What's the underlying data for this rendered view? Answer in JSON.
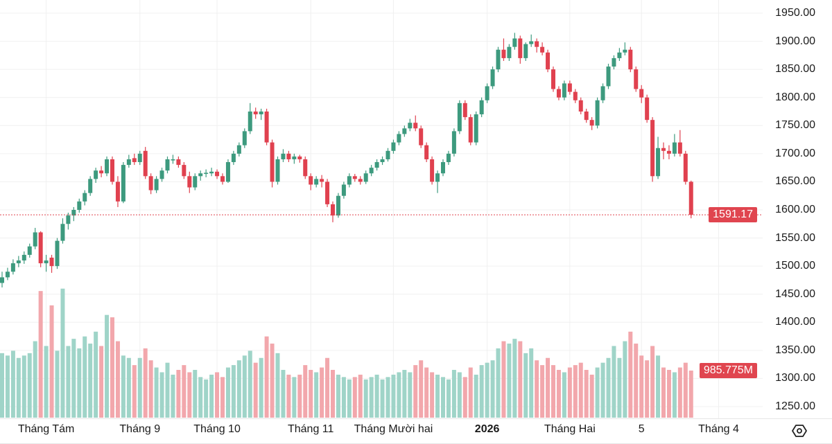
{
  "chart_data": {
    "type": "candlestick",
    "y_axis": {
      "ticks": [
        "1950.00",
        "1900.00",
        "1850.00",
        "1800.00",
        "1750.00",
        "1700.00",
        "1650.00",
        "1600.00",
        "1550.00",
        "1500.00",
        "1450.00",
        "1400.00",
        "1350.00",
        "1300.00",
        "1250.00"
      ],
      "range": [
        1230,
        1960
      ]
    },
    "x_axis": {
      "ticks": [
        {
          "label": "Tháng Tám",
          "index": 8,
          "bold": false
        },
        {
          "label": "Tháng 9",
          "index": 25,
          "bold": false
        },
        {
          "label": "Tháng 10",
          "index": 39,
          "bold": false
        },
        {
          "label": "Tháng 11",
          "index": 56,
          "bold": false
        },
        {
          "label": "Tháng Mười hai",
          "index": 71,
          "bold": false
        },
        {
          "label": "2026",
          "index": 88,
          "bold": true
        },
        {
          "label": "Tháng Hai",
          "index": 103,
          "bold": false
        },
        {
          "label": "5",
          "index": 116,
          "bold": false
        },
        {
          "label": "Tháng 4",
          "index": 130,
          "bold": false
        }
      ]
    },
    "last_price": "1591.17",
    "last_volume": "985.775M",
    "grid": true,
    "colors": {
      "up": "#3d9a7e",
      "down": "#e0414f",
      "vol_up": "#9fd4c8",
      "vol_down": "#f2a7ac",
      "price_line": "#e0454f"
    },
    "columns": [
      "open",
      "high",
      "low",
      "close",
      "volume_M"
    ],
    "candles": [
      [
        1470,
        1490,
        1462,
        1480,
        1350
      ],
      [
        1480,
        1497,
        1475,
        1490,
        1300
      ],
      [
        1490,
        1512,
        1485,
        1505,
        1400
      ],
      [
        1505,
        1518,
        1498,
        1510,
        1250
      ],
      [
        1510,
        1526,
        1504,
        1520,
        1300
      ],
      [
        1520,
        1540,
        1515,
        1535,
        1350
      ],
      [
        1535,
        1568,
        1530,
        1560,
        1600
      ],
      [
        1560,
        1562,
        1498,
        1505,
        2650
      ],
      [
        1505,
        1520,
        1490,
        1510,
        1500
      ],
      [
        1515,
        1520,
        1488,
        1500,
        2350
      ],
      [
        1500,
        1550,
        1495,
        1545,
        1400
      ],
      [
        1545,
        1585,
        1540,
        1575,
        2700
      ],
      [
        1575,
        1595,
        1565,
        1590,
        1500
      ],
      [
        1590,
        1605,
        1580,
        1600,
        1650
      ],
      [
        1600,
        1620,
        1595,
        1615,
        1450
      ],
      [
        1615,
        1635,
        1608,
        1630,
        1700
      ],
      [
        1630,
        1660,
        1625,
        1655,
        1550
      ],
      [
        1655,
        1675,
        1648,
        1670,
        1800
      ],
      [
        1670,
        1678,
        1658,
        1665,
        1500
      ],
      [
        1665,
        1695,
        1660,
        1690,
        2150
      ],
      [
        1690,
        1695,
        1645,
        1650,
        2100
      ],
      [
        1650,
        1660,
        1605,
        1615,
        1600
      ],
      [
        1615,
        1685,
        1612,
        1680,
        1300
      ],
      [
        1680,
        1698,
        1675,
        1690,
        1250
      ],
      [
        1692,
        1700,
        1680,
        1685,
        1100
      ],
      [
        1685,
        1705,
        1680,
        1700,
        1250
      ],
      [
        1705,
        1712,
        1655,
        1660,
        1450
      ],
      [
        1660,
        1665,
        1628,
        1635,
        1200
      ],
      [
        1635,
        1660,
        1630,
        1655,
        1050
      ],
      [
        1655,
        1675,
        1650,
        1670,
        950
      ],
      [
        1670,
        1695,
        1665,
        1690,
        1150
      ],
      [
        1688,
        1698,
        1682,
        1690,
        900
      ],
      [
        1690,
        1695,
        1675,
        1680,
        1000
      ],
      [
        1680,
        1685,
        1655,
        1660,
        1100
      ],
      [
        1660,
        1668,
        1630,
        1640,
        950
      ],
      [
        1640,
        1665,
        1635,
        1660,
        1000
      ],
      [
        1660,
        1670,
        1652,
        1665,
        850
      ],
      [
        1664,
        1672,
        1658,
        1666,
        800
      ],
      [
        1665,
        1675,
        1660,
        1668,
        900
      ],
      [
        1668,
        1672,
        1655,
        1660,
        950
      ],
      [
        1660,
        1665,
        1645,
        1650,
        850
      ],
      [
        1650,
        1690,
        1648,
        1685,
        1050
      ],
      [
        1685,
        1705,
        1680,
        1700,
        1100
      ],
      [
        1700,
        1720,
        1695,
        1715,
        1200
      ],
      [
        1715,
        1745,
        1710,
        1740,
        1300
      ],
      [
        1740,
        1790,
        1735,
        1775,
        1400
      ],
      [
        1775,
        1782,
        1762,
        1770,
        1150
      ],
      [
        1770,
        1780,
        1760,
        1775,
        1250
      ],
      [
        1775,
        1780,
        1715,
        1720,
        1700
      ],
      [
        1720,
        1725,
        1640,
        1650,
        1550
      ],
      [
        1650,
        1695,
        1645,
        1690,
        1350
      ],
      [
        1690,
        1708,
        1685,
        1700,
        1000
      ],
      [
        1700,
        1705,
        1685,
        1690,
        900
      ],
      [
        1690,
        1700,
        1682,
        1695,
        850
      ],
      [
        1695,
        1698,
        1684,
        1690,
        900
      ],
      [
        1690,
        1695,
        1655,
        1660,
        1100
      ],
      [
        1660,
        1665,
        1635,
        1645,
        1000
      ],
      [
        1645,
        1660,
        1640,
        1655,
        950
      ],
      [
        1655,
        1662,
        1640,
        1650,
        1050
      ],
      [
        1650,
        1655,
        1605,
        1610,
        1250
      ],
      [
        1610,
        1615,
        1578,
        1590,
        1000
      ],
      [
        1590,
        1630,
        1586,
        1625,
        900
      ],
      [
        1625,
        1650,
        1620,
        1645,
        850
      ],
      [
        1645,
        1665,
        1640,
        1660,
        800
      ],
      [
        1660,
        1664,
        1650,
        1655,
        850
      ],
      [
        1655,
        1660,
        1645,
        1650,
        900
      ],
      [
        1650,
        1670,
        1646,
        1665,
        800
      ],
      [
        1665,
        1680,
        1660,
        1675,
        850
      ],
      [
        1675,
        1690,
        1670,
        1685,
        900
      ],
      [
        1685,
        1695,
        1680,
        1690,
        800
      ],
      [
        1690,
        1710,
        1686,
        1705,
        850
      ],
      [
        1705,
        1725,
        1700,
        1720,
        900
      ],
      [
        1720,
        1740,
        1715,
        1735,
        950
      ],
      [
        1735,
        1750,
        1730,
        1745,
        1000
      ],
      [
        1745,
        1762,
        1740,
        1755,
        950
      ],
      [
        1755,
        1768,
        1740,
        1745,
        1100
      ],
      [
        1745,
        1750,
        1710,
        1715,
        1200
      ],
      [
        1715,
        1720,
        1685,
        1690,
        1050
      ],
      [
        1690,
        1695,
        1645,
        1650,
        950
      ],
      [
        1650,
        1670,
        1630,
        1665,
        900
      ],
      [
        1665,
        1690,
        1660,
        1685,
        850
      ],
      [
        1685,
        1705,
        1680,
        1700,
        800
      ],
      [
        1700,
        1745,
        1695,
        1740,
        1000
      ],
      [
        1740,
        1795,
        1735,
        1790,
        950
      ],
      [
        1790,
        1795,
        1760,
        1765,
        850
      ],
      [
        1765,
        1770,
        1715,
        1720,
        1050
      ],
      [
        1720,
        1775,
        1715,
        1770,
        900
      ],
      [
        1770,
        1800,
        1765,
        1795,
        1100
      ],
      [
        1795,
        1825,
        1790,
        1820,
        1150
      ],
      [
        1820,
        1855,
        1815,
        1850,
        1200
      ],
      [
        1850,
        1890,
        1845,
        1885,
        1450
      ],
      [
        1885,
        1905,
        1865,
        1870,
        1600
      ],
      [
        1870,
        1895,
        1865,
        1890,
        1550
      ],
      [
        1890,
        1915,
        1885,
        1905,
        1650
      ],
      [
        1905,
        1910,
        1860,
        1870,
        1600
      ],
      [
        1870,
        1898,
        1865,
        1895,
        1350
      ],
      [
        1895,
        1912,
        1890,
        1900,
        1450
      ],
      [
        1900,
        1905,
        1880,
        1890,
        1200
      ],
      [
        1890,
        1898,
        1875,
        1880,
        1100
      ],
      [
        1880,
        1885,
        1845,
        1850,
        1250
      ],
      [
        1850,
        1855,
        1810,
        1815,
        1100
      ],
      [
        1815,
        1820,
        1795,
        1800,
        1000
      ],
      [
        1800,
        1830,
        1795,
        1825,
        950
      ],
      [
        1825,
        1830,
        1805,
        1810,
        1050
      ],
      [
        1810,
        1815,
        1790,
        1795,
        1100
      ],
      [
        1795,
        1800,
        1770,
        1775,
        1150
      ],
      [
        1775,
        1780,
        1755,
        1760,
        1000
      ],
      [
        1760,
        1765,
        1742,
        1750,
        900
      ],
      [
        1750,
        1800,
        1745,
        1795,
        1050
      ],
      [
        1795,
        1825,
        1790,
        1820,
        1150
      ],
      [
        1820,
        1860,
        1815,
        1855,
        1250
      ],
      [
        1855,
        1875,
        1850,
        1870,
        1500
      ],
      [
        1870,
        1888,
        1865,
        1880,
        1250
      ],
      [
        1880,
        1898,
        1875,
        1885,
        1600
      ],
      [
        1885,
        1890,
        1845,
        1850,
        1800
      ],
      [
        1850,
        1855,
        1810,
        1815,
        1550
      ],
      [
        1815,
        1822,
        1790,
        1800,
        1300
      ],
      [
        1800,
        1805,
        1755,
        1760,
        1200
      ],
      [
        1760,
        1765,
        1650,
        1660,
        1500
      ],
      [
        1660,
        1730,
        1655,
        1710,
        1300
      ],
      [
        1710,
        1720,
        1690,
        1705,
        1050
      ],
      [
        1705,
        1715,
        1690,
        1700,
        1000
      ],
      [
        1700,
        1735,
        1695,
        1720,
        950
      ],
      [
        1720,
        1742,
        1695,
        1700,
        1050
      ],
      [
        1700,
        1705,
        1645,
        1650,
        1150
      ],
      [
        1650,
        1652,
        1585,
        1591.17,
        985.775
      ]
    ]
  },
  "icons": {
    "settings": "settings-hexagon-icon"
  }
}
